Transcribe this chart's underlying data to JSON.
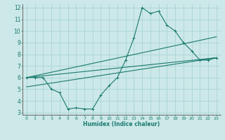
{
  "xlabel": "Humidex (Indice chaleur)",
  "bg_color": "#cce8e8",
  "line_color": "#1a7a6e",
  "grid_color": "#aad4d4",
  "xlim": [
    -0.5,
    23.5
  ],
  "ylim": [
    2.8,
    12.3
  ],
  "xticks": [
    0,
    1,
    2,
    3,
    4,
    5,
    6,
    7,
    8,
    9,
    10,
    11,
    12,
    13,
    14,
    15,
    16,
    17,
    18,
    19,
    20,
    21,
    22,
    23
  ],
  "yticks": [
    3,
    4,
    5,
    6,
    7,
    8,
    9,
    10,
    11,
    12
  ],
  "line1_x": [
    0,
    1,
    2,
    3,
    4,
    5,
    6,
    7,
    8,
    9,
    10,
    11,
    12,
    13,
    14,
    15,
    16,
    17,
    18,
    19,
    20,
    21,
    22,
    23
  ],
  "line1_y": [
    6.0,
    6.0,
    6.0,
    5.0,
    4.7,
    3.3,
    3.4,
    3.3,
    3.3,
    4.5,
    5.3,
    6.0,
    7.5,
    9.4,
    12.0,
    11.5,
    11.7,
    10.5,
    10.0,
    9.0,
    8.3,
    7.5,
    7.5,
    7.7
  ],
  "line2_x": [
    0,
    23
  ],
  "line2_y": [
    6.0,
    7.7
  ],
  "line3_x": [
    0,
    23
  ],
  "line3_y": [
    6.0,
    9.5
  ],
  "line4_x": [
    0,
    23
  ],
  "line4_y": [
    5.2,
    7.7
  ]
}
